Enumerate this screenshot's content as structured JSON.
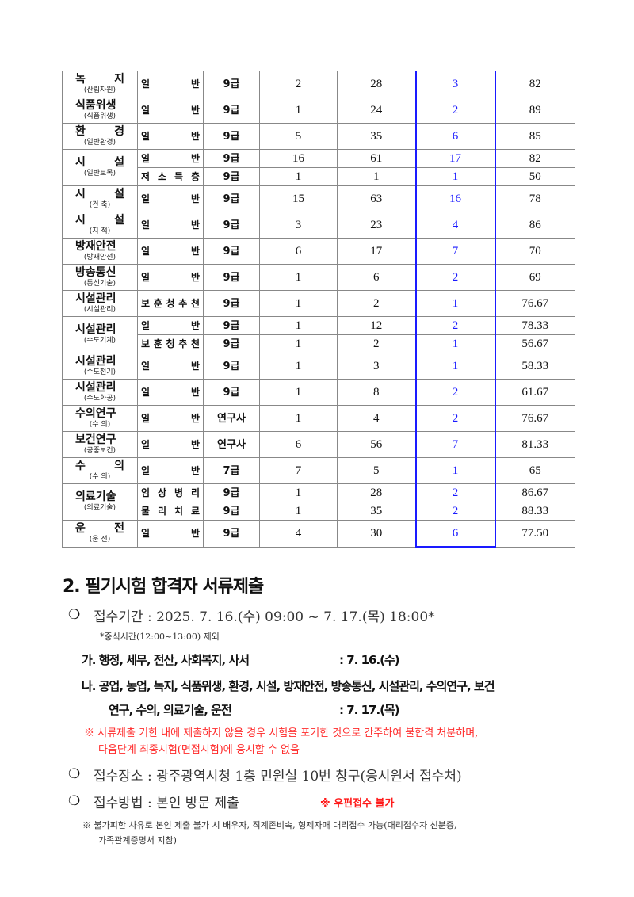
{
  "table": {
    "groups": [
      {
        "name": "녹 지",
        "sub": "(산림자원)",
        "rows": [
          {
            "type": "일 반",
            "grade": "9급",
            "quota": "2",
            "applicants": "28",
            "passed": "3",
            "cutoff": "82"
          }
        ]
      },
      {
        "name": "식품위생",
        "sub": "(식품위생)",
        "rows": [
          {
            "type": "일 반",
            "grade": "9급",
            "quota": "1",
            "applicants": "24",
            "passed": "2",
            "cutoff": "89"
          }
        ]
      },
      {
        "name": "환 경",
        "sub": "(일반환경)",
        "rows": [
          {
            "type": "일 반",
            "grade": "9급",
            "quota": "5",
            "applicants": "35",
            "passed": "6",
            "cutoff": "85"
          }
        ]
      },
      {
        "name": "시 설",
        "sub": "(일반토목)",
        "rows": [
          {
            "type": "일 반",
            "grade": "9급",
            "quota": "16",
            "applicants": "61",
            "passed": "17",
            "cutoff": "82"
          },
          {
            "type": "저 소 득 층",
            "grade": "9급",
            "quota": "1",
            "applicants": "1",
            "passed": "1",
            "cutoff": "50"
          }
        ]
      },
      {
        "name": "시 설",
        "sub": "(건 축)",
        "rows": [
          {
            "type": "일 반",
            "grade": "9급",
            "quota": "15",
            "applicants": "63",
            "passed": "16",
            "cutoff": "78"
          }
        ]
      },
      {
        "name": "시 설",
        "sub": "(지 적)",
        "rows": [
          {
            "type": "일 반",
            "grade": "9급",
            "quota": "3",
            "applicants": "23",
            "passed": "4",
            "cutoff": "86"
          }
        ]
      },
      {
        "name": "방재안전",
        "sub": "(방재안전)",
        "rows": [
          {
            "type": "일 반",
            "grade": "9급",
            "quota": "6",
            "applicants": "17",
            "passed": "7",
            "cutoff": "70"
          }
        ]
      },
      {
        "name": "방송통신",
        "sub": "(통신기술)",
        "rows": [
          {
            "type": "일 반",
            "grade": "9급",
            "quota": "1",
            "applicants": "6",
            "passed": "2",
            "cutoff": "69"
          }
        ]
      },
      {
        "name": "시설관리",
        "sub": "(시설관리)",
        "rows": [
          {
            "type": "보 훈 청 추 천",
            "grade": "9급",
            "quota": "1",
            "applicants": "2",
            "passed": "1",
            "cutoff": "76.67"
          }
        ]
      },
      {
        "name": "시설관리",
        "sub": "(수도기계)",
        "rows": [
          {
            "type": "일 반",
            "grade": "9급",
            "quota": "1",
            "applicants": "12",
            "passed": "2",
            "cutoff": "78.33"
          },
          {
            "type": "보 훈 청 추 천",
            "grade": "9급",
            "quota": "1",
            "applicants": "2",
            "passed": "1",
            "cutoff": "56.67"
          }
        ]
      },
      {
        "name": "시설관리",
        "sub": "(수도전기)",
        "rows": [
          {
            "type": "일 반",
            "grade": "9급",
            "quota": "1",
            "applicants": "3",
            "passed": "1",
            "cutoff": "58.33"
          }
        ]
      },
      {
        "name": "시설관리",
        "sub": "(수도화공)",
        "rows": [
          {
            "type": "일 반",
            "grade": "9급",
            "quota": "1",
            "applicants": "8",
            "passed": "2",
            "cutoff": "61.67"
          }
        ]
      },
      {
        "name": "수의연구",
        "sub": "(수 의)",
        "rows": [
          {
            "type": "일 반",
            "grade": "연구사",
            "quota": "1",
            "applicants": "4",
            "passed": "2",
            "cutoff": "76.67"
          }
        ]
      },
      {
        "name": "보건연구",
        "sub": "(공중보건)",
        "rows": [
          {
            "type": "일 반",
            "grade": "연구사",
            "quota": "6",
            "applicants": "56",
            "passed": "7",
            "cutoff": "81.33"
          }
        ]
      },
      {
        "name": "수 의",
        "sub": "(수 의)",
        "rows": [
          {
            "type": "일 반",
            "grade": "7급",
            "quota": "7",
            "applicants": "5",
            "passed": "1",
            "cutoff": "65"
          }
        ]
      },
      {
        "name": "의료기술",
        "sub": "(의료기술)",
        "rows": [
          {
            "type": "임 상 병 리",
            "grade": "9급",
            "quota": "1",
            "applicants": "28",
            "passed": "2",
            "cutoff": "86.67"
          },
          {
            "type": "물 리 치 료",
            "grade": "9급",
            "quota": "1",
            "applicants": "35",
            "passed": "2",
            "cutoff": "88.33"
          }
        ]
      },
      {
        "name": "운 전",
        "sub": "(운 전)",
        "rows": [
          {
            "type": "일 반",
            "grade": "9급",
            "quota": "4",
            "applicants": "30",
            "passed": "6",
            "cutoff": "77.50"
          }
        ]
      }
    ]
  },
  "section": {
    "heading": "2. 필기시험 합격자 서류제출",
    "bullet": "❍",
    "period": "접수기간 : 2025. 7. 16.(수) 09:00 ~ 7. 17.(목) 18:00*",
    "period_note": "*중식시간(12:00~13:00) 제외",
    "ga": "가.  행정, 세무, 전산, 사회복지, 사서",
    "ga_date": ": 7. 16.(수)",
    "na": "나.  공업, 농업, 녹지, 식품위생, 환경, 시설, 방재안전, 방송통신, 시설관리, 수의연구, 보건",
    "na2": "연구, 수의, 의료기술, 운전",
    "na_date": ": 7. 17.(목)",
    "warn1": "※ 서류제출 기한 내에 제출하지 않을 경우 시험을 포기한 것으로 간주하여 불합격 처분하며,",
    "warn2": "다음단계 최종시험(면접시험)에 응시할 수 없음",
    "place": "접수장소 : 광주광역시청 1층 민원실 10번 창구(응시원서 접수처)",
    "method": "접수방법 : 본인 방문 제출",
    "method_note": "※ 우편접수 불가",
    "proxy1": "※ 불가피한 사유로 본인 제출 불가 시 배우자, 직계존비속, 형제자매 대리접수 가능(대리접수자 신분증,",
    "proxy2": "가족관계증명서 지참)"
  },
  "colors": {
    "passed": "#1a1aff",
    "warning": "#ff2a2a"
  }
}
